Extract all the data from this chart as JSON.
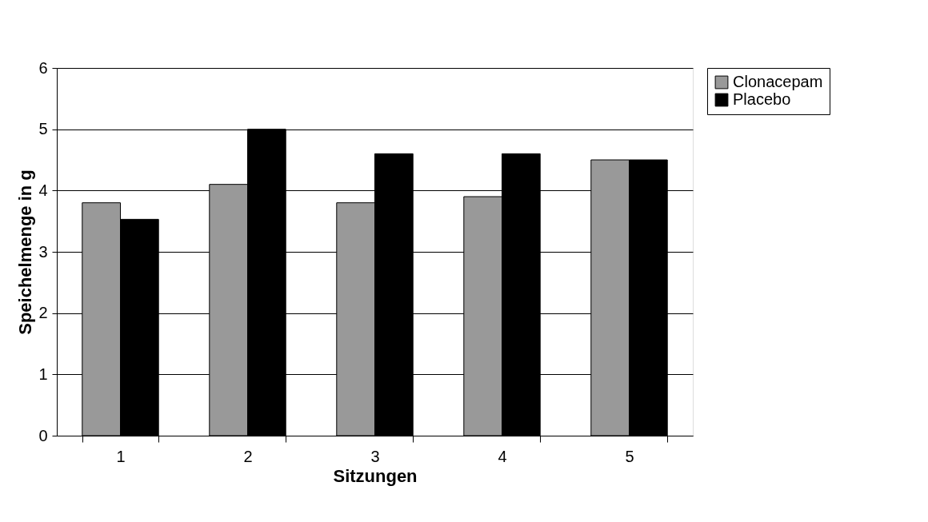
{
  "chart_data": {
    "type": "bar",
    "xlabel": "Sitzungen",
    "ylabel": "Speichelmenge in g",
    "categories": [
      "1",
      "2",
      "3",
      "4",
      "5"
    ],
    "series": [
      {
        "name": "Clonacepam",
        "color": "#999999",
        "values": [
          3.8,
          4.1,
          3.8,
          3.9,
          4.5
        ]
      },
      {
        "name": "Placebo",
        "color": "#000000",
        "values": [
          3.53,
          5.0,
          4.6,
          4.6,
          4.5
        ]
      }
    ],
    "ylim": [
      0,
      6
    ],
    "yticks": [
      0,
      1,
      2,
      3,
      4,
      5,
      6
    ],
    "grid": "y",
    "legend": "right"
  }
}
